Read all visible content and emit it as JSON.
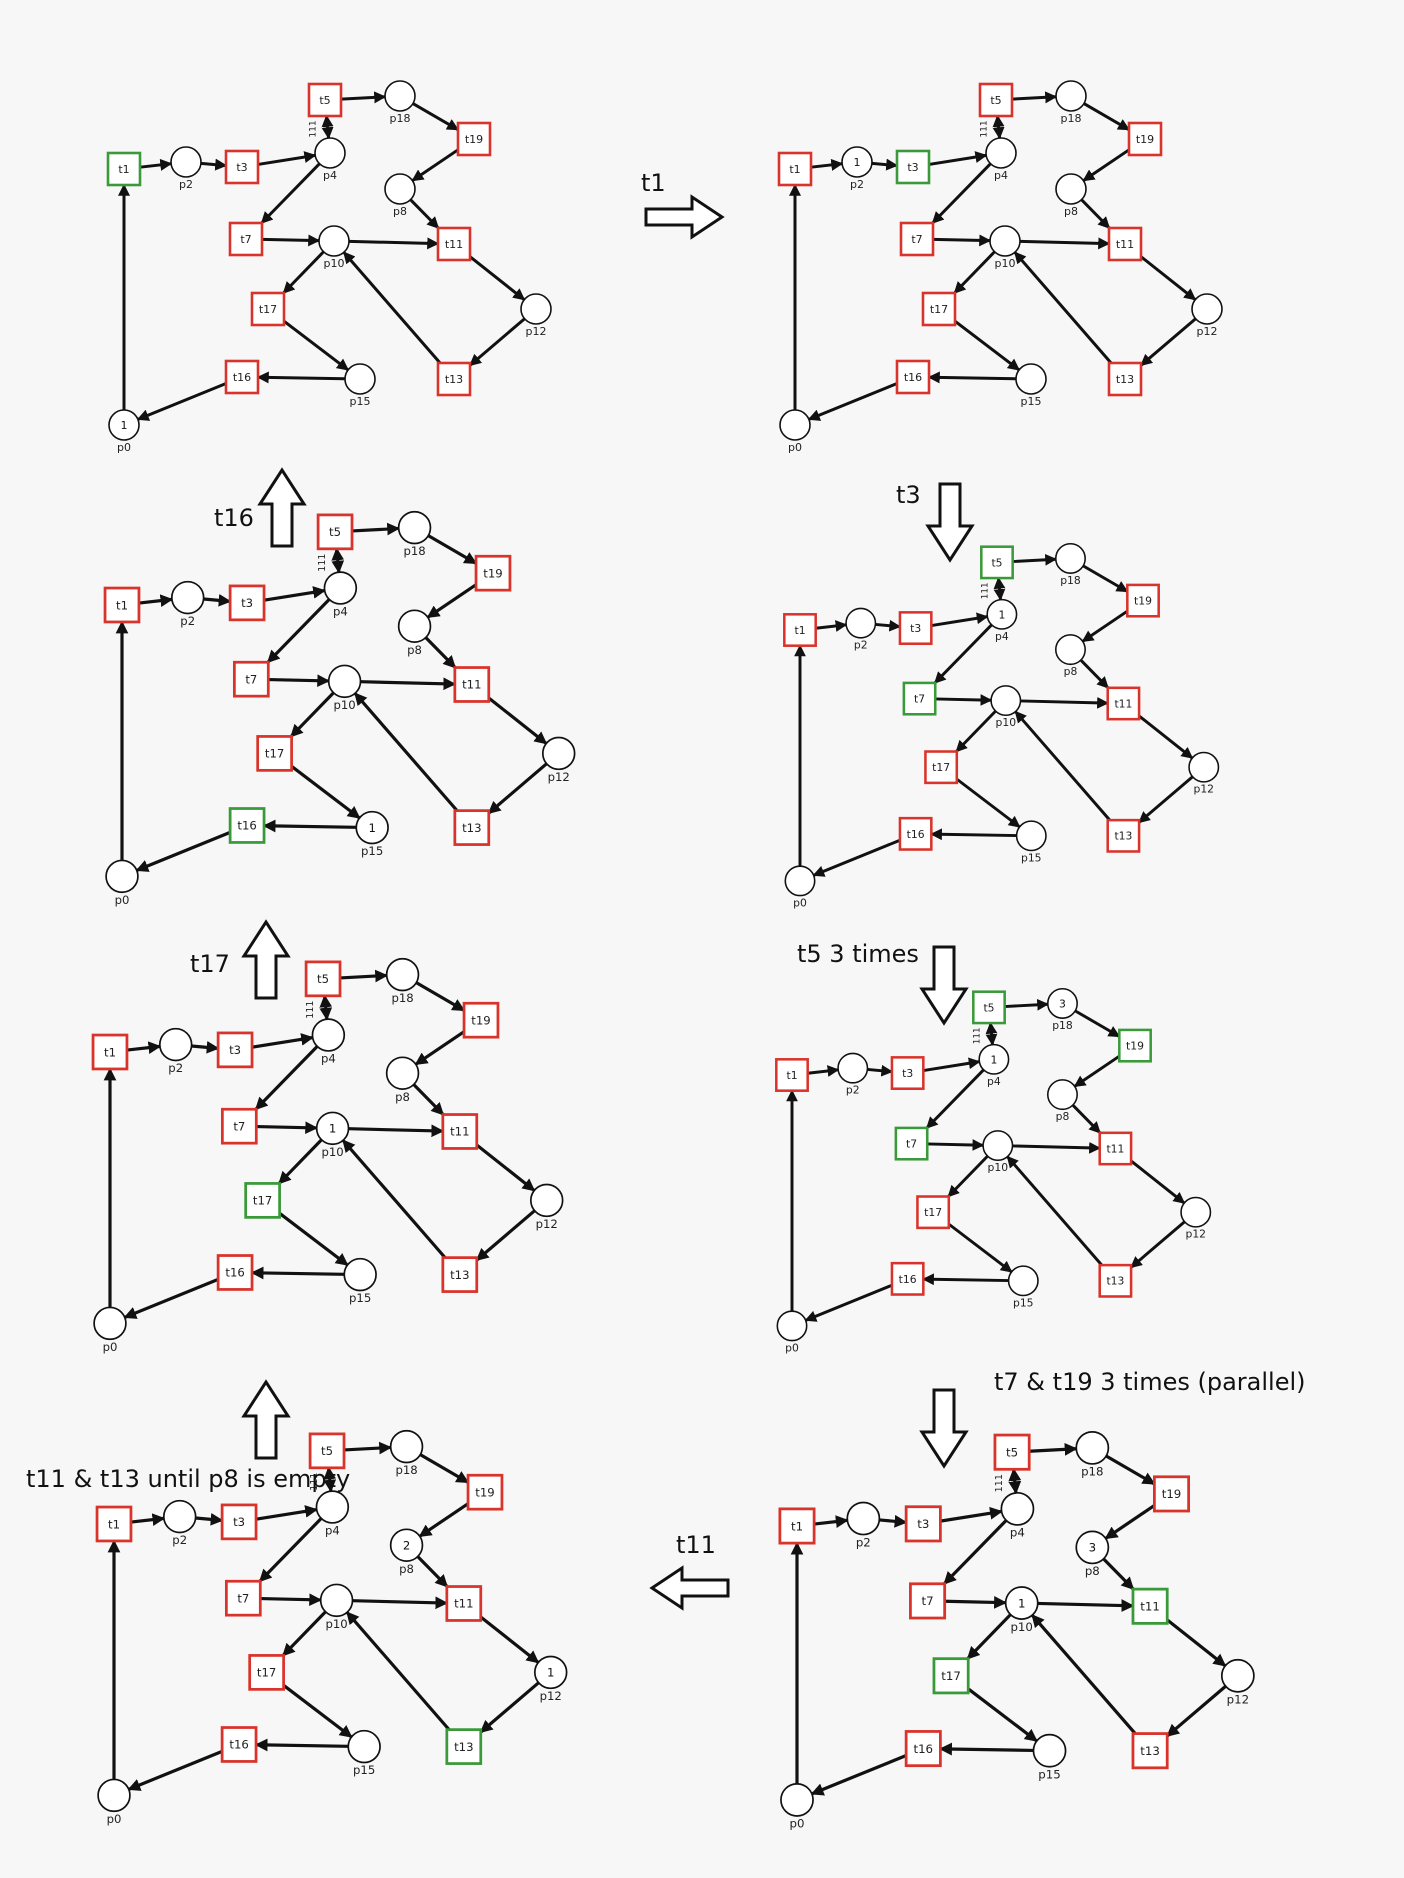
{
  "colors": {
    "enabled": "#3a9a3a",
    "disabled": "#d9342b",
    "edge": "#111111"
  },
  "places": [
    {
      "id": "p0",
      "label": "p0"
    },
    {
      "id": "p2",
      "label": "p2"
    },
    {
      "id": "p4",
      "label": "p4"
    },
    {
      "id": "p8",
      "label": "p8"
    },
    {
      "id": "p10",
      "label": "p10"
    },
    {
      "id": "p12",
      "label": "p12"
    },
    {
      "id": "p15",
      "label": "p15"
    },
    {
      "id": "p18",
      "label": "p18"
    }
  ],
  "transitions": [
    {
      "id": "t1",
      "label": "t1"
    },
    {
      "id": "t3",
      "label": "t3"
    },
    {
      "id": "t5",
      "label": "t5"
    },
    {
      "id": "t7",
      "label": "t7"
    },
    {
      "id": "t11",
      "label": "t11"
    },
    {
      "id": "t13",
      "label": "t13"
    },
    {
      "id": "t16",
      "label": "t16"
    },
    {
      "id": "t17",
      "label": "t17"
    },
    {
      "id": "t19",
      "label": "t19"
    }
  ],
  "arc_weight_label": "111",
  "states": [
    {
      "id": "s1",
      "tokens": {
        "p0": "1"
      },
      "enabled": [
        "t1"
      ]
    },
    {
      "id": "s2",
      "tokens": {
        "p2": "1"
      },
      "enabled": [
        "t3"
      ]
    },
    {
      "id": "s3",
      "tokens": {
        "p4": "1"
      },
      "enabled": [
        "t5",
        "t7"
      ]
    },
    {
      "id": "s4",
      "tokens": {
        "p4": "1",
        "p18": "3"
      },
      "enabled": [
        "t5",
        "t7",
        "t19"
      ]
    },
    {
      "id": "s5",
      "tokens": {
        "p8": "3",
        "p10": "1"
      },
      "enabled": [
        "t11",
        "t17"
      ]
    },
    {
      "id": "s6",
      "tokens": {
        "p8": "2",
        "p12": "1"
      },
      "enabled": [
        "t13"
      ]
    },
    {
      "id": "s7",
      "tokens": {
        "p10": "1"
      },
      "enabled": [
        "t17"
      ]
    },
    {
      "id": "s8",
      "tokens": {
        "p15": "1"
      },
      "enabled": [
        "t16"
      ]
    }
  ],
  "steps": [
    {
      "id": "step-t1",
      "label": "t1"
    },
    {
      "id": "step-t3",
      "label": "t3"
    },
    {
      "id": "step-t5",
      "label": "t5 3 times"
    },
    {
      "id": "step-t7-t19",
      "label": "t7 & t19 3 times (parallel)"
    },
    {
      "id": "step-t11",
      "label": "t11"
    },
    {
      "id": "step-t11-t13",
      "label": "t11 & t13 until p8 is empty"
    },
    {
      "id": "step-t17",
      "label": "t17"
    },
    {
      "id": "step-t16",
      "label": "t16"
    }
  ]
}
